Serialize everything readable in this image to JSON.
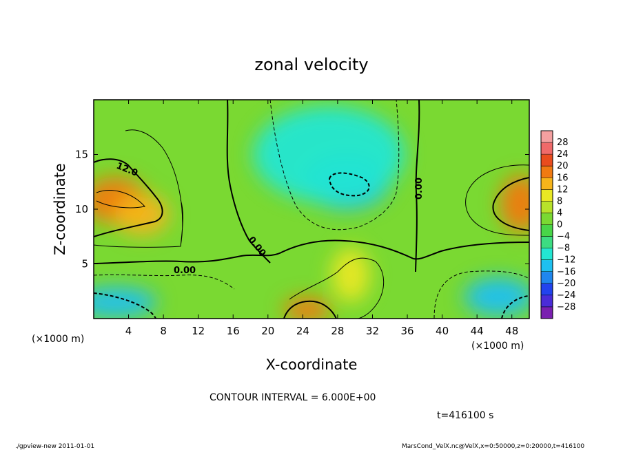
{
  "chart_data": {
    "type": "heatmap",
    "title": "zonal velocity",
    "xlabel": "X-coordinate",
    "ylabel": "Z-coordinate",
    "x_unit": "(×1000 m)",
    "y_unit": "",
    "xlim": [
      0,
      50
    ],
    "ylim": [
      0,
      20
    ],
    "x_ticks": [
      "4",
      "8",
      "12",
      "16",
      "20",
      "24",
      "28",
      "32",
      "36",
      "40",
      "44",
      "48"
    ],
    "y_ticks": [
      "5",
      "10",
      "15"
    ],
    "x_tick_values": [
      4,
      8,
      12,
      16,
      20,
      24,
      28,
      32,
      36,
      40,
      44,
      48
    ],
    "y_tick_values": [
      5,
      10,
      15
    ],
    "colorbar": {
      "labels": [
        "28",
        "24",
        "20",
        "16",
        "12",
        "8",
        "4",
        "0",
        "−4",
        "−8",
        "−12",
        "−16",
        "−20",
        "−24",
        "−28"
      ],
      "range": [
        -30,
        30
      ],
      "colors": [
        "#7a1fb0",
        "#4a2cd8",
        "#2243ee",
        "#1f86ee",
        "#1ec0f0",
        "#23e6d2",
        "#3ddc82",
        "#48d548",
        "#7ad932",
        "#b8e22a",
        "#e9e824",
        "#f6b41a",
        "#f07a12",
        "#e94c1e",
        "#f06a6a",
        "#f4a0a0"
      ]
    },
    "contour_labels": [
      "12.0",
      "0.00",
      "0.00",
      "0.00"
    ],
    "contour_interval_text": "CONTOUR INTERVAL = 6.000E+00",
    "time_text": "t=416100 s",
    "features": [
      {
        "x": 2.5,
        "z": 10.8,
        "value": 17
      },
      {
        "x": 5.5,
        "z": 9.5,
        "value": 13
      },
      {
        "x": 29.0,
        "z": 12.5,
        "value": -13
      },
      {
        "x": 27.0,
        "z": 15.0,
        "value": -9
      },
      {
        "x": 49.0,
        "z": 10.5,
        "value": 15
      },
      {
        "x": 2.5,
        "z": 1.5,
        "value": -14
      },
      {
        "x": 46.5,
        "z": 2.0,
        "value": -13
      },
      {
        "x": 24.5,
        "z": 0.8,
        "value": 15
      },
      {
        "x": 29.5,
        "z": 4.0,
        "value": 8
      }
    ]
  },
  "footer": {
    "left": "./gpview-new   2011-01-01",
    "right": "MarsCond_VelX.nc@VelX,x=0:50000,z=0:20000,t=416100"
  }
}
